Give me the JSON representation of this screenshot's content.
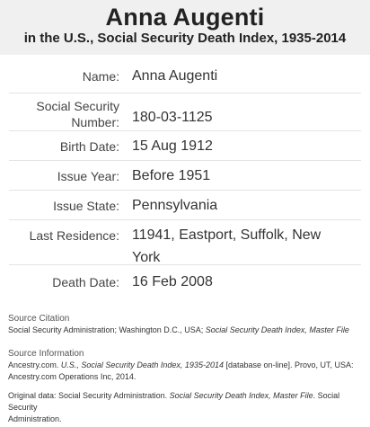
{
  "header": {
    "title": "Anna Augenti",
    "subtitle": "in the U.S., Social Security Death Index, 1935-2014"
  },
  "record": {
    "name_label": "Name:",
    "name_value": "Anna Augenti",
    "ssn_label_line1": "Social Security",
    "ssn_label_line2": "Number:",
    "ssn_value": "180-03-1125",
    "birth_label": "Birth Date:",
    "birth_value": "15 Aug 1912",
    "issue_year_label": "Issue Year:",
    "issue_year_value": "Before 1951",
    "issue_state_label": "Issue State:",
    "issue_state_value": "Pennsylvania",
    "residence_label": "Last Residence:",
    "residence_value_line1": "11941, Eastport, Suffolk, New",
    "residence_value_line2": "York",
    "death_label": "Death Date:",
    "death_value": "16 Feb 2008"
  },
  "source_citation": {
    "heading": "Source Citation",
    "text_plain": "Social Security Administration; Washington D.C., USA; ",
    "text_italic": "Social Security Death Index, Master File"
  },
  "source_information": {
    "heading": "Source Information",
    "part1": "Ancestry.com. ",
    "part2_italic": "U.S., Social Security Death Index, 1935-2014",
    "part3": " [database on-line]. Provo, UT, USA:",
    "line2": "Ancestry.com Operations Inc, 2014."
  },
  "original_data": {
    "part1": "Original data: Social Security Administration. ",
    "part2_italic": "Social Security Death Index, Master File",
    "part3": ". Social Security",
    "line2": "Administration."
  }
}
